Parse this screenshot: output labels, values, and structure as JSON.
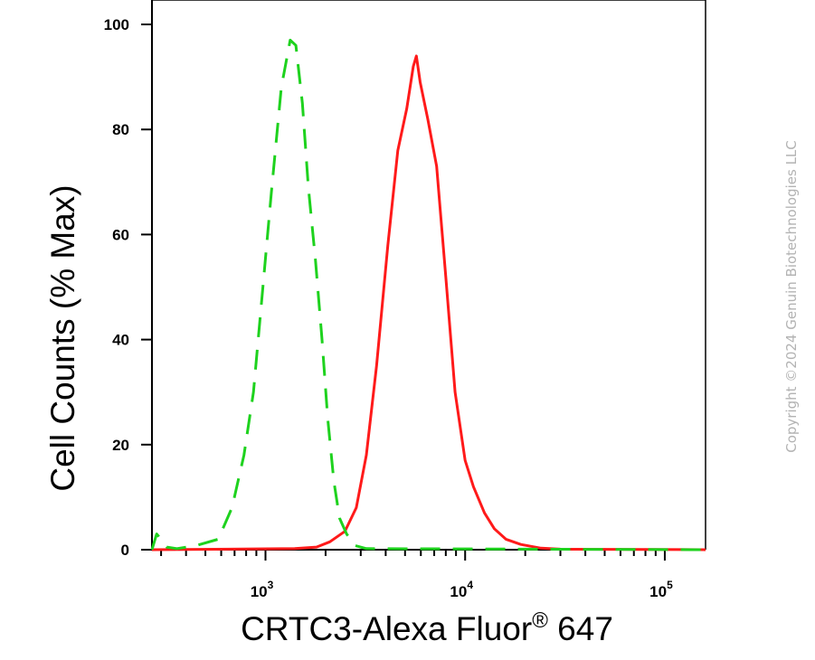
{
  "chart_data": {
    "type": "line",
    "xlabel": "CRTC3-Alexa Fluor",
    "xlabel_sup": "®",
    "xlabel_suffix": " 647",
    "ylabel": "Cell Counts (% Max)",
    "x_scale": "log",
    "xlim": [
      270,
      160000
    ],
    "ylim": [
      0,
      100
    ],
    "y_ticks": [
      0,
      20,
      40,
      60,
      80,
      100
    ],
    "x_major_ticks": [
      {
        "value": 1000,
        "base": "10",
        "exp": "3"
      },
      {
        "value": 10000,
        "base": "10",
        "exp": "4"
      },
      {
        "value": 100000,
        "base": "10",
        "exp": "5"
      }
    ],
    "grid": false,
    "legend": "none",
    "series": [
      {
        "color": "#ff1a1a",
        "style": "solid",
        "points": [
          [
            270,
            0
          ],
          [
            1400,
            0.2
          ],
          [
            1800,
            0.5
          ],
          [
            2100,
            1.5
          ],
          [
            2500,
            3.5
          ],
          [
            2850,
            8
          ],
          [
            3200,
            18
          ],
          [
            3600,
            35
          ],
          [
            4100,
            58
          ],
          [
            4600,
            76
          ],
          [
            5100,
            84
          ],
          [
            5500,
            92
          ],
          [
            5700,
            94
          ],
          [
            5950,
            89
          ],
          [
            6500,
            82
          ],
          [
            7200,
            73
          ],
          [
            8000,
            52
          ],
          [
            8900,
            30
          ],
          [
            10000,
            17
          ],
          [
            11000,
            12
          ],
          [
            12500,
            7
          ],
          [
            14000,
            4
          ],
          [
            16000,
            2
          ],
          [
            19000,
            1
          ],
          [
            24000,
            0.3
          ],
          [
            30000,
            0.1
          ],
          [
            160000,
            0
          ]
        ]
      },
      {
        "color": "#1ed21e",
        "style": "dashed",
        "points": [
          [
            270,
            0
          ],
          [
            285,
            3
          ],
          [
            300,
            2
          ],
          [
            320,
            0.5
          ],
          [
            360,
            0.2
          ],
          [
            450,
            0.8
          ],
          [
            580,
            2
          ],
          [
            680,
            8
          ],
          [
            780,
            18
          ],
          [
            870,
            30
          ],
          [
            960,
            48
          ],
          [
            1070,
            68
          ],
          [
            1200,
            88
          ],
          [
            1330,
            97
          ],
          [
            1420,
            96
          ],
          [
            1530,
            85
          ],
          [
            1640,
            69
          ],
          [
            1780,
            55
          ],
          [
            1920,
            40
          ],
          [
            2050,
            25
          ],
          [
            2200,
            13
          ],
          [
            2350,
            6
          ],
          [
            2550,
            3
          ],
          [
            2800,
            0.8
          ],
          [
            3200,
            0.2
          ],
          [
            160000,
            0
          ]
        ]
      }
    ]
  },
  "watermark": {
    "text": "Copyright ©2024 Genuin Biotechnologies LLC"
  }
}
